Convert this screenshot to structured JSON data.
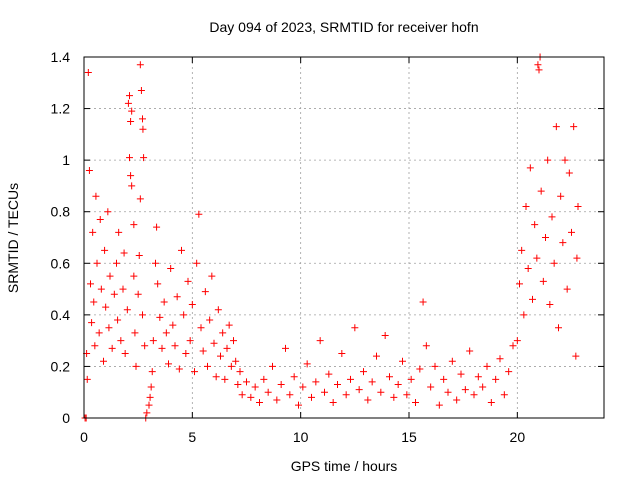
{
  "chart_data": {
    "type": "scatter",
    "title": "Day 094 of 2023, SRMTID for receiver hofn",
    "xlabel": "GPS time / hours",
    "ylabel": "SRMTID / TECUs",
    "xlim": [
      0,
      24
    ],
    "ylim": [
      0,
      1.4
    ],
    "xticks": [
      0,
      5,
      10,
      15,
      20
    ],
    "xtick_labels": [
      "0",
      "5",
      "10",
      "15",
      "20"
    ],
    "yticks": [
      0,
      0.2,
      0.4,
      0.6,
      0.8,
      1.0,
      1.2,
      1.4
    ],
    "ytick_labels": [
      "0",
      "0.2",
      "0.4",
      "0.6",
      "0.8",
      "1",
      "1.2",
      "1.4"
    ],
    "grid": true,
    "marker": "+",
    "marker_color": "#ff0000",
    "series": [
      {
        "name": "SRMTID",
        "points": [
          [
            0.05,
            0.0
          ],
          [
            0.1,
            0.0
          ],
          [
            0.12,
            0.25
          ],
          [
            0.15,
            0.15
          ],
          [
            0.2,
            1.34
          ],
          [
            0.25,
            0.96
          ],
          [
            0.3,
            0.52
          ],
          [
            0.35,
            0.37
          ],
          [
            0.4,
            0.72
          ],
          [
            0.45,
            0.45
          ],
          [
            0.5,
            0.28
          ],
          [
            0.55,
            0.86
          ],
          [
            0.6,
            0.6
          ],
          [
            0.7,
            0.33
          ],
          [
            0.75,
            0.77
          ],
          [
            0.8,
            0.5
          ],
          [
            0.9,
            0.22
          ],
          [
            0.95,
            0.65
          ],
          [
            1.0,
            0.43
          ],
          [
            1.1,
            0.8
          ],
          [
            1.15,
            0.35
          ],
          [
            1.2,
            0.55
          ],
          [
            1.3,
            0.27
          ],
          [
            1.4,
            0.48
          ],
          [
            1.5,
            0.6
          ],
          [
            1.55,
            0.38
          ],
          [
            1.6,
            0.72
          ],
          [
            1.7,
            0.3
          ],
          [
            1.8,
            0.5
          ],
          [
            1.85,
            0.64
          ],
          [
            1.9,
            0.25
          ],
          [
            2.0,
            0.42
          ],
          [
            2.05,
            1.22
          ],
          [
            2.1,
            1.25
          ],
          [
            2.15,
            1.15
          ],
          [
            2.2,
            1.19
          ],
          [
            2.1,
            1.01
          ],
          [
            2.15,
            0.94
          ],
          [
            2.2,
            0.9
          ],
          [
            2.3,
            0.75
          ],
          [
            2.3,
            0.55
          ],
          [
            2.35,
            0.33
          ],
          [
            2.4,
            0.2
          ],
          [
            2.5,
            0.48
          ],
          [
            2.55,
            0.63
          ],
          [
            2.6,
            1.37
          ],
          [
            2.65,
            1.27
          ],
          [
            2.7,
            1.16
          ],
          [
            2.72,
            1.12
          ],
          [
            2.75,
            1.01
          ],
          [
            2.6,
            0.85
          ],
          [
            2.7,
            0.4
          ],
          [
            2.8,
            0.28
          ],
          [
            2.85,
            0.0
          ],
          [
            2.9,
            0.02
          ],
          [
            3.0,
            0.05
          ],
          [
            3.05,
            0.08
          ],
          [
            3.1,
            0.12
          ],
          [
            3.15,
            0.18
          ],
          [
            3.2,
            0.3
          ],
          [
            3.3,
            0.6
          ],
          [
            3.35,
            0.74
          ],
          [
            3.4,
            0.52
          ],
          [
            3.5,
            0.39
          ],
          [
            3.6,
            0.27
          ],
          [
            3.7,
            0.45
          ],
          [
            3.8,
            0.33
          ],
          [
            3.9,
            0.21
          ],
          [
            4.0,
            0.58
          ],
          [
            4.1,
            0.36
          ],
          [
            4.2,
            0.28
          ],
          [
            4.3,
            0.47
          ],
          [
            4.4,
            0.19
          ],
          [
            4.5,
            0.65
          ],
          [
            4.6,
            0.4
          ],
          [
            4.7,
            0.25
          ],
          [
            4.8,
            0.53
          ],
          [
            4.9,
            0.3
          ],
          [
            5.0,
            0.44
          ],
          [
            5.1,
            0.18
          ],
          [
            5.2,
            0.6
          ],
          [
            5.3,
            0.79
          ],
          [
            5.4,
            0.35
          ],
          [
            5.5,
            0.26
          ],
          [
            5.6,
            0.49
          ],
          [
            5.7,
            0.2
          ],
          [
            5.8,
            0.38
          ],
          [
            5.9,
            0.55
          ],
          [
            6.0,
            0.29
          ],
          [
            6.1,
            0.16
          ],
          [
            6.2,
            0.42
          ],
          [
            6.3,
            0.24
          ],
          [
            6.4,
            0.33
          ],
          [
            6.5,
            0.15
          ],
          [
            6.6,
            0.27
          ],
          [
            6.7,
            0.36
          ],
          [
            6.8,
            0.2
          ],
          [
            6.9,
            0.3
          ],
          [
            7.0,
            0.22
          ],
          [
            7.1,
            0.13
          ],
          [
            7.2,
            0.18
          ],
          [
            7.3,
            0.09
          ],
          [
            7.5,
            0.14
          ],
          [
            7.7,
            0.08
          ],
          [
            7.9,
            0.12
          ],
          [
            8.1,
            0.06
          ],
          [
            8.3,
            0.15
          ],
          [
            8.5,
            0.1
          ],
          [
            8.7,
            0.2
          ],
          [
            8.9,
            0.07
          ],
          [
            9.1,
            0.13
          ],
          [
            9.3,
            0.27
          ],
          [
            9.5,
            0.09
          ],
          [
            9.7,
            0.16
          ],
          [
            9.9,
            0.05
          ],
          [
            10.1,
            0.12
          ],
          [
            10.3,
            0.21
          ],
          [
            10.5,
            0.08
          ],
          [
            10.7,
            0.14
          ],
          [
            10.9,
            0.3
          ],
          [
            11.1,
            0.1
          ],
          [
            11.3,
            0.17
          ],
          [
            11.5,
            0.06
          ],
          [
            11.7,
            0.13
          ],
          [
            11.9,
            0.25
          ],
          [
            12.1,
            0.09
          ],
          [
            12.3,
            0.15
          ],
          [
            12.5,
            0.35
          ],
          [
            12.7,
            0.11
          ],
          [
            12.9,
            0.18
          ],
          [
            13.1,
            0.07
          ],
          [
            13.3,
            0.14
          ],
          [
            13.5,
            0.24
          ],
          [
            13.7,
            0.1
          ],
          [
            13.9,
            0.32
          ],
          [
            14.1,
            0.16
          ],
          [
            14.3,
            0.08
          ],
          [
            14.5,
            0.13
          ],
          [
            14.7,
            0.22
          ],
          [
            14.9,
            0.09
          ],
          [
            15.1,
            0.15
          ],
          [
            15.3,
            0.06
          ],
          [
            15.5,
            0.19
          ],
          [
            15.65,
            0.45
          ],
          [
            15.8,
            0.28
          ],
          [
            16.0,
            0.12
          ],
          [
            16.2,
            0.2
          ],
          [
            16.4,
            0.05
          ],
          [
            16.6,
            0.15
          ],
          [
            16.8,
            0.1
          ],
          [
            17.0,
            0.22
          ],
          [
            17.2,
            0.07
          ],
          [
            17.4,
            0.17
          ],
          [
            17.6,
            0.11
          ],
          [
            17.8,
            0.26
          ],
          [
            18.0,
            0.09
          ],
          [
            18.2,
            0.16
          ],
          [
            18.4,
            0.12
          ],
          [
            18.6,
            0.2
          ],
          [
            18.8,
            0.06
          ],
          [
            19.0,
            0.15
          ],
          [
            19.2,
            0.23
          ],
          [
            19.4,
            0.09
          ],
          [
            19.6,
            0.18
          ],
          [
            19.8,
            0.28
          ],
          [
            20.0,
            0.3
          ],
          [
            20.1,
            0.52
          ],
          [
            20.2,
            0.65
          ],
          [
            20.3,
            0.4
          ],
          [
            20.4,
            0.82
          ],
          [
            20.5,
            0.58
          ],
          [
            20.6,
            0.97
          ],
          [
            20.7,
            0.46
          ],
          [
            20.8,
            0.75
          ],
          [
            20.9,
            0.62
          ],
          [
            20.95,
            1.37
          ],
          [
            21.0,
            1.35
          ],
          [
            21.05,
            1.4
          ],
          [
            21.1,
            0.88
          ],
          [
            21.2,
            0.53
          ],
          [
            21.3,
            0.7
          ],
          [
            21.4,
            1.0
          ],
          [
            21.5,
            0.44
          ],
          [
            21.6,
            0.78
          ],
          [
            21.7,
            0.6
          ],
          [
            21.8,
            1.13
          ],
          [
            21.9,
            0.35
          ],
          [
            22.0,
            0.86
          ],
          [
            22.1,
            0.68
          ],
          [
            22.2,
            1.0
          ],
          [
            22.3,
            0.5
          ],
          [
            22.4,
            0.95
          ],
          [
            22.5,
            0.72
          ],
          [
            22.6,
            1.13
          ],
          [
            22.7,
            0.24
          ],
          [
            22.75,
            0.62
          ],
          [
            22.8,
            0.82
          ]
        ]
      }
    ]
  }
}
